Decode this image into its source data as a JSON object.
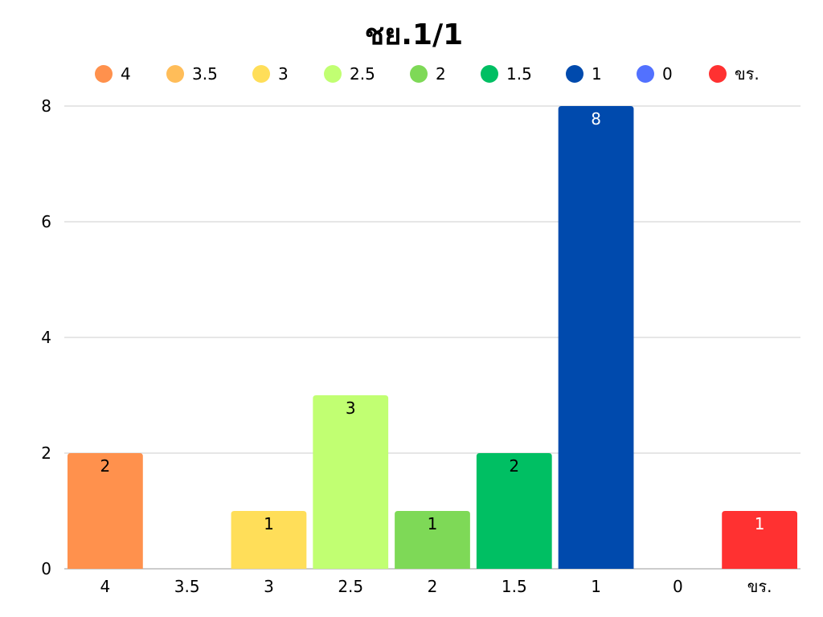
{
  "chart_data": {
    "type": "bar",
    "title": "ชย.1/1",
    "xlabel": "",
    "ylabel": "",
    "categories": [
      "4",
      "3.5",
      "3",
      "2.5",
      "2",
      "1.5",
      "1",
      "0",
      "ขร."
    ],
    "values": [
      2,
      0,
      1,
      3,
      1,
      2,
      8,
      0,
      1
    ],
    "colors": [
      "#ff914d",
      "#ffbd59",
      "#ffde59",
      "#c1ff72",
      "#7ed957",
      "#00bf63",
      "#004aad",
      "#5271ff",
      "#ff3131"
    ],
    "data_label_colors": [
      "#000000",
      "#000000",
      "#000000",
      "#000000",
      "#000000",
      "#000000",
      "#ffffff",
      "#ffffff",
      "#ffffff"
    ],
    "legend": {
      "position": "top",
      "entries": [
        "4",
        "3.5",
        "3",
        "2.5",
        "2",
        "1.5",
        "1",
        "0",
        "ขร."
      ]
    },
    "ylim": [
      0,
      8
    ],
    "yticks": [
      "0",
      "2",
      "4",
      "6",
      "8"
    ],
    "grid": true,
    "gridline_color": "#cccccc"
  }
}
